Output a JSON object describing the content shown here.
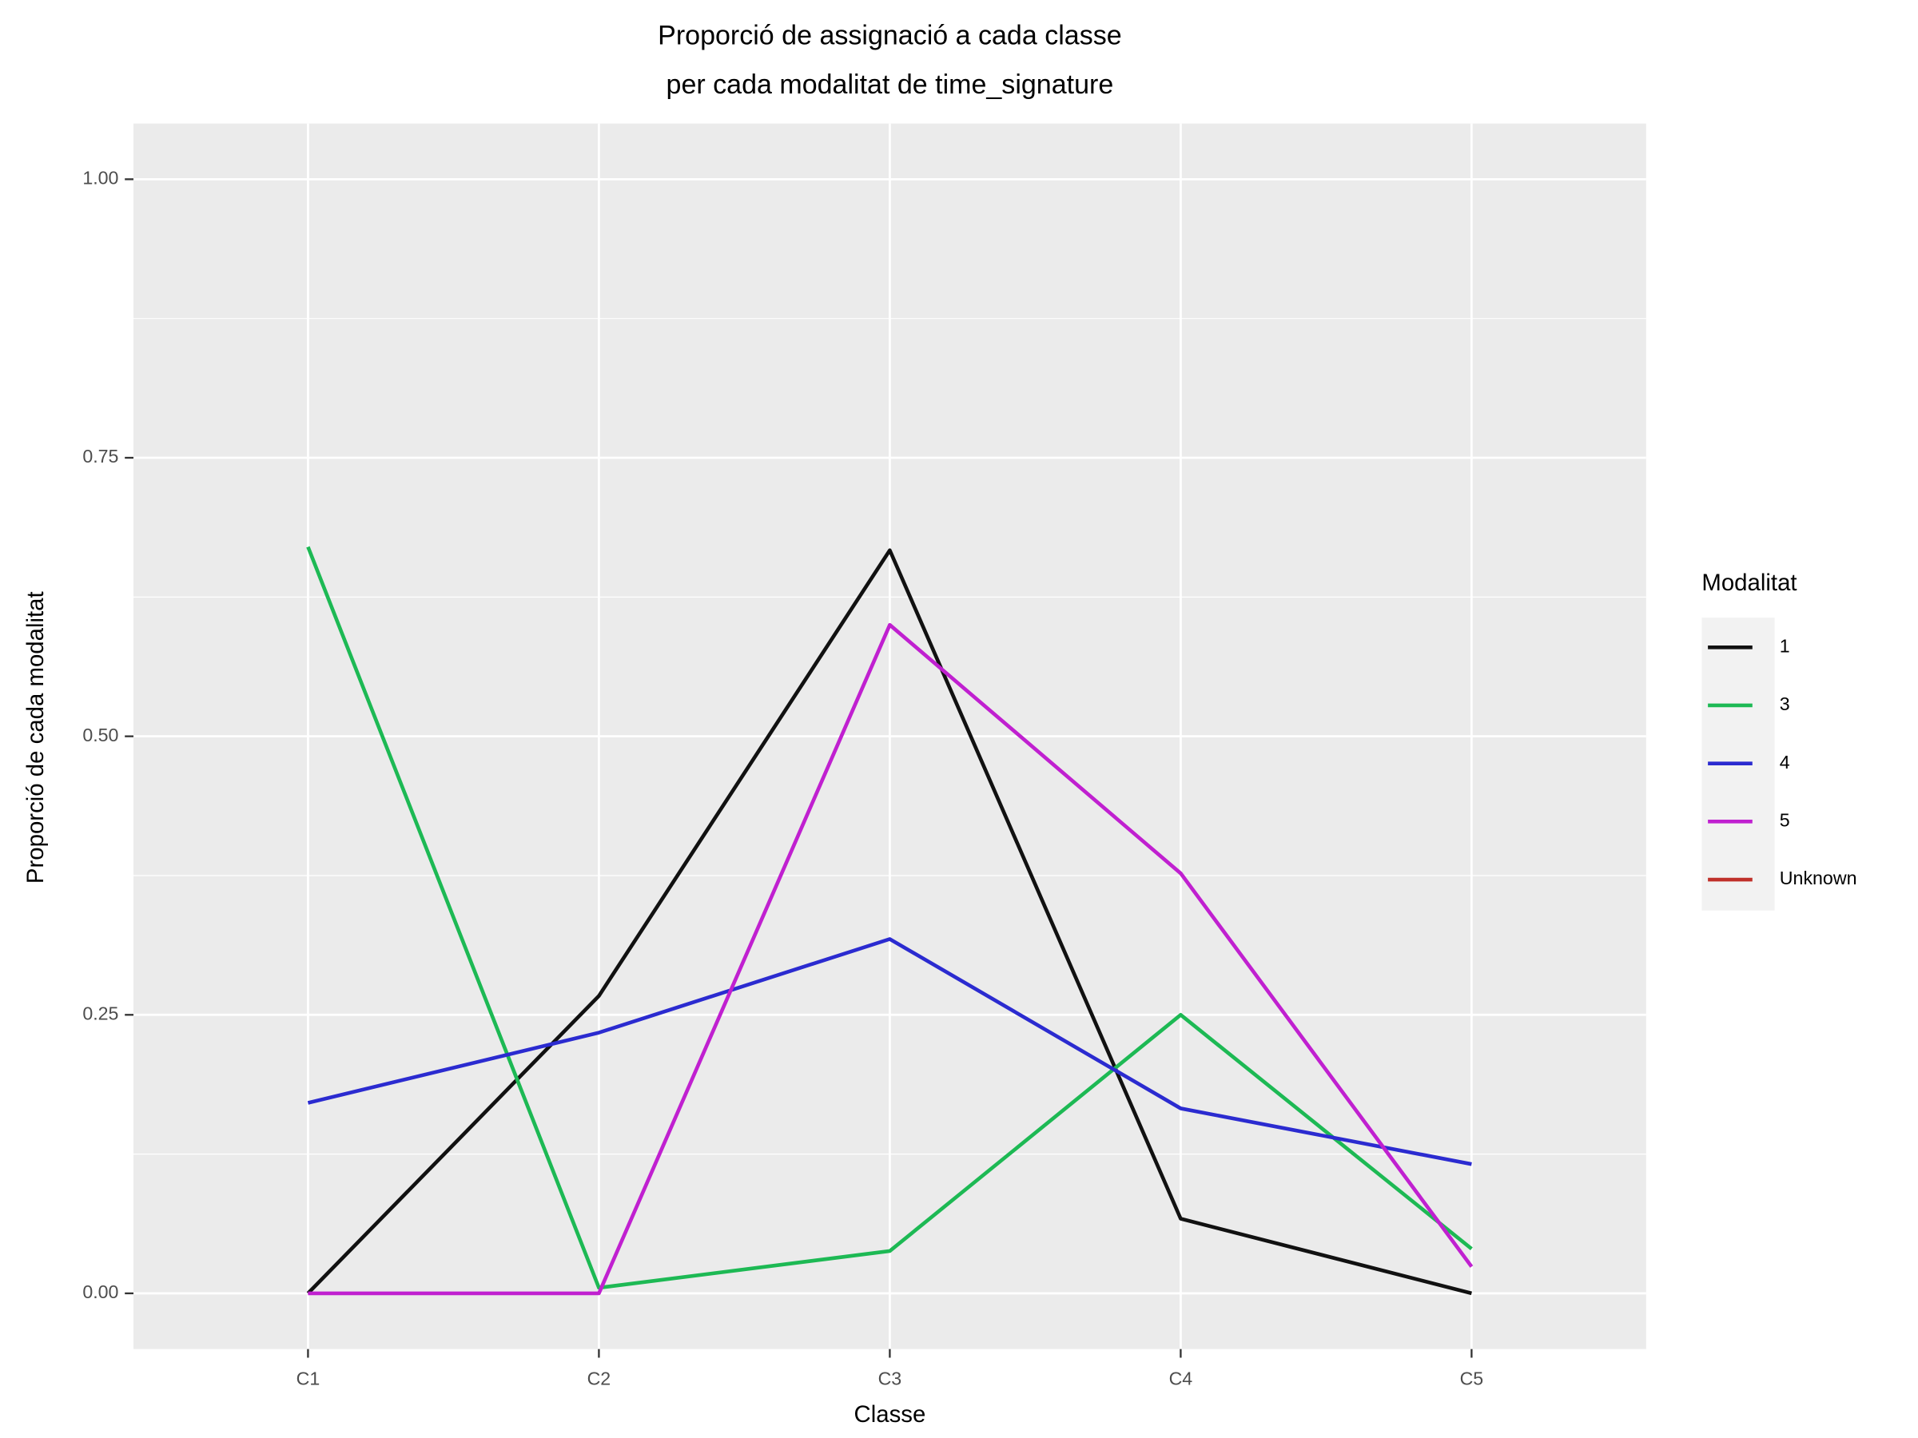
{
  "chart_data": {
    "type": "line",
    "title": [
      "Proporció de assignació a cada classe",
      "per cada modalitat de time_signature"
    ],
    "x_label": "Classe",
    "y_label": "Proporció de cada modalitat",
    "legend_title": "Modalitat",
    "legend": "right",
    "grid": true,
    "categories": [
      "C1",
      "C2",
      "C3",
      "C4",
      "C5"
    ],
    "series": [
      {
        "name": "1",
        "color": "#111111",
        "values": [
          0,
          0.267,
          0.667,
          0.067,
          0
        ]
      },
      {
        "name": "3",
        "color": "#1db954",
        "values": [
          0.67,
          0.005,
          0.038,
          0.25,
          0.04
        ]
      },
      {
        "name": "4",
        "color": "#2b2bd0",
        "values": [
          0.171,
          0.234,
          0.318,
          0.166,
          0.116
        ]
      },
      {
        "name": "5",
        "color": "#c020d0",
        "values": [
          0,
          0,
          0.6,
          0.377,
          0.024
        ]
      },
      {
        "name": "Unknown",
        "color": "#c0302a",
        "values": [
          null,
          null,
          null,
          null,
          null
        ]
      }
    ],
    "ylim": [
      -0.05,
      1.05
    ],
    "yticks": [
      {
        "value": 0,
        "label": "0.00"
      },
      {
        "value": 0.25,
        "label": "0.25"
      },
      {
        "value": 0.5,
        "label": "0.50"
      },
      {
        "value": 0.75,
        "label": "0.75"
      },
      {
        "value": 1,
        "label": "1.00"
      }
    ]
  }
}
